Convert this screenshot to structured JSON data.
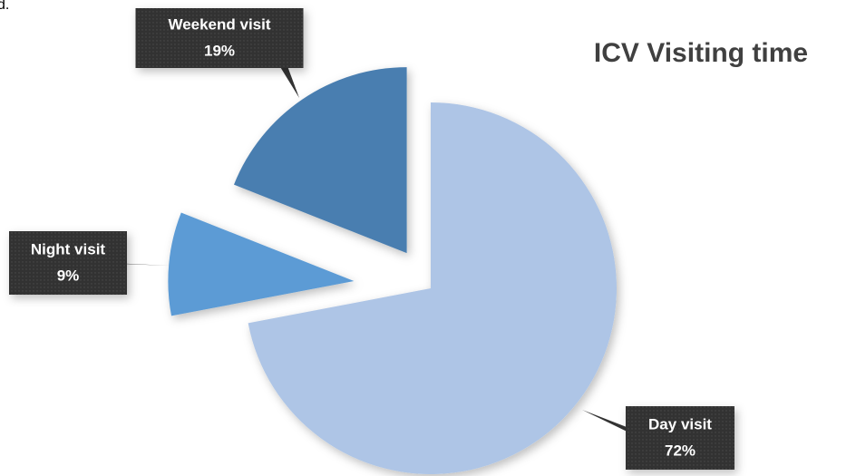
{
  "corner_text": "d.",
  "chart_data": {
    "type": "pie",
    "title": "ICV Visiting time",
    "categories": [
      "Day visit",
      "Night visit",
      "Weekend visit"
    ],
    "values": [
      72,
      9,
      19
    ],
    "value_labels": [
      "72%",
      "9%",
      "19%"
    ],
    "colors": [
      "#aec5e6",
      "#5b9bd5",
      "#4a7eb0"
    ]
  }
}
